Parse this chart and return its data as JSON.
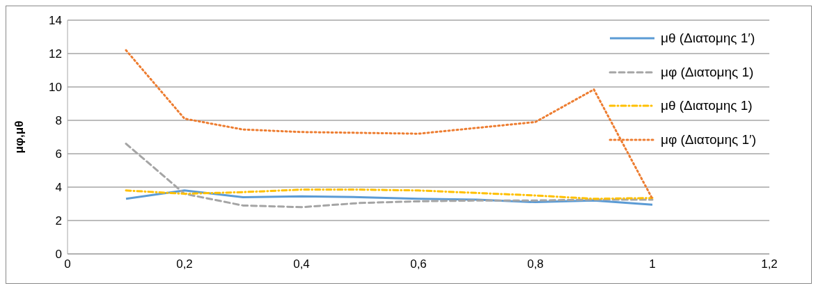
{
  "chart_data": {
    "type": "line",
    "ylabel": "μφ,μθ",
    "x": [
      0.1,
      0.2,
      0.3,
      0.4,
      0.5,
      0.6,
      0.7,
      0.8,
      0.9,
      1
    ],
    "xlim": [
      0,
      1.2
    ],
    "xticks": [
      {
        "value": 0,
        "label": "0"
      },
      {
        "value": 0.2,
        "label": "0,2"
      },
      {
        "value": 0.4,
        "label": "0,4"
      },
      {
        "value": 0.6,
        "label": "0,6"
      },
      {
        "value": 0.8,
        "label": "0,8"
      },
      {
        "value": 1,
        "label": "1"
      },
      {
        "value": 1.2,
        "label": "1,2"
      }
    ],
    "ylim": [
      0,
      14
    ],
    "yticks": [
      0,
      2,
      4,
      6,
      8,
      10,
      12,
      14
    ],
    "grid": "y",
    "legend": "top right",
    "marker": "none",
    "series": [
      {
        "name": "μθ (Διατομης 1′)",
        "color": "#5b9bd5",
        "line_style": "solid",
        "values": [
          3.3,
          3.8,
          3.4,
          3.45,
          3.4,
          3.3,
          3.25,
          3.1,
          3.2,
          2.95
        ]
      },
      {
        "name": "μφ (Διατομης 1)",
        "color": "#a5a5a5",
        "line_style": "dashed",
        "values": [
          6.6,
          3.6,
          2.9,
          2.8,
          3.05,
          3.15,
          3.2,
          3.2,
          3.25,
          3.25
        ]
      },
      {
        "name": "μθ (Διατομης 1)",
        "color": "#ffc000",
        "line_style": "dashdot",
        "values": [
          3.8,
          3.6,
          3.7,
          3.85,
          3.85,
          3.8,
          3.65,
          3.5,
          3.3,
          3.35
        ]
      },
      {
        "name": "μφ (Διατομης 1′)",
        "color": "#ed7d31",
        "line_style": "dotted",
        "values": [
          12.2,
          8.1,
          7.45,
          7.3,
          7.25,
          7.2,
          7.55,
          7.9,
          9.85,
          3.3
        ]
      }
    ]
  }
}
